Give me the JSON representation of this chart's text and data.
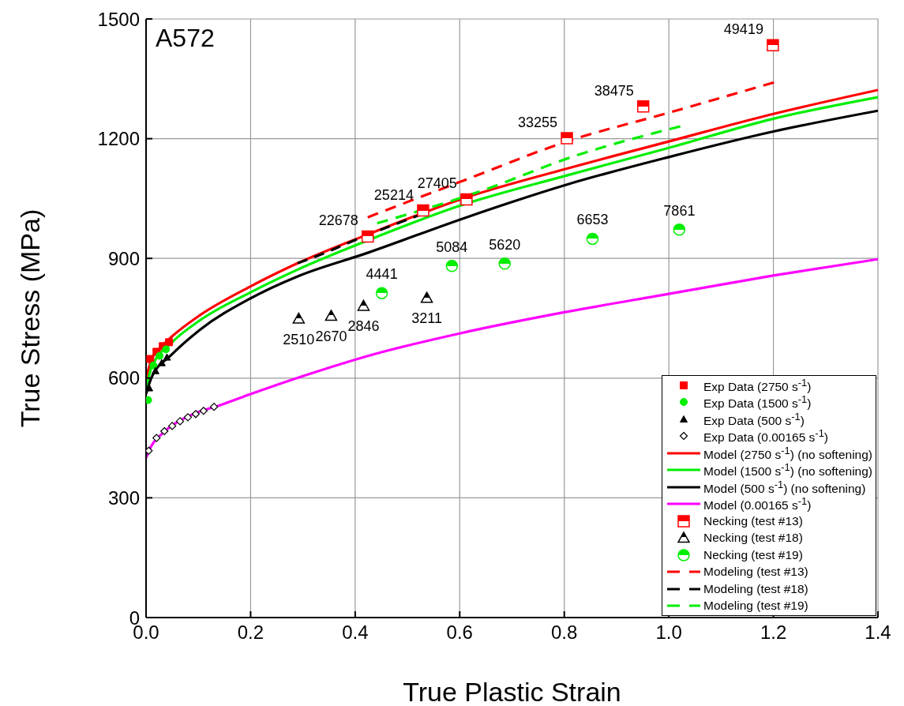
{
  "chart_data": {
    "type": "line",
    "xlabel": "True Plastic Strain",
    "ylabel": "True Stress (MPa)",
    "annotations": [
      "A572",
      {
        "text": "22678",
        "x": 0.424,
        "y": 955
      },
      {
        "text": "25214",
        "x": 0.53,
        "y": 1020
      },
      {
        "text": "27405",
        "x": 0.613,
        "y": 1048
      },
      {
        "text": "33255",
        "x": 0.805,
        "y": 1201
      },
      {
        "text": "38475",
        "x": 0.951,
        "y": 1281
      },
      {
        "text": "49419",
        "x": 1.199,
        "y": 1434
      },
      {
        "text": "2510",
        "x": 0.292,
        "y": 749
      },
      {
        "text": "2670",
        "x": 0.354,
        "y": 756
      },
      {
        "text": "2846",
        "x": 0.416,
        "y": 781
      },
      {
        "text": "3211",
        "x": 0.537,
        "y": 801
      },
      {
        "text": "4441",
        "x": 0.451,
        "y": 813
      },
      {
        "text": "5084",
        "x": 0.585,
        "y": 881
      },
      {
        "text": "5620",
        "x": 0.686,
        "y": 887
      },
      {
        "text": "6653",
        "x": 0.854,
        "y": 949
      },
      {
        "text": "7861",
        "x": 1.02,
        "y": 972
      }
    ],
    "xlim": [
      0,
      1.4
    ],
    "xticks": [
      {
        "value": 0,
        "label": "0.0"
      },
      0.2,
      0.4,
      0.6,
      0.8,
      {
        "value": 1,
        "label": "1.0"
      },
      1.2,
      1.4
    ],
    "ylim": [
      0,
      1500
    ],
    "yticks": [
      0,
      300,
      600,
      900,
      1200,
      1500
    ],
    "grid": true,
    "legend": "bottom right",
    "marker": "none",
    "line_style": "solid",
    "series": [
      {
        "name": "Exp Data (2750 s$^{-1}$)",
        "type": "scatter",
        "marker": "square",
        "color": "#ff0000",
        "x": [
          0.008,
          0.02,
          0.032,
          0.044
        ],
        "values": [
          648,
          666,
          680,
          690
        ]
      },
      {
        "name": "Exp Data (1500 s$^{-1}$)",
        "type": "scatter",
        "marker": "circle",
        "color": "#00ee00",
        "x": [
          0.004,
          0.014,
          0.026,
          0.038
        ],
        "values": [
          545,
          632,
          656,
          672
        ]
      },
      {
        "name": "Exp Data (500 s$^{-1}$)",
        "type": "scatter",
        "marker": "triangle",
        "color": "#000000",
        "x": [
          0.006,
          0.018,
          0.03,
          0.04
        ],
        "values": [
          575,
          618,
          638,
          652
        ]
      },
      {
        "name": "Exp Data (0.00165 s$^{-1}$)",
        "type": "scatter",
        "marker": "diamond",
        "color": "#000000",
        "x": [
          0.005,
          0.02,
          0.035,
          0.05,
          0.065,
          0.08,
          0.095,
          0.11,
          0.13
        ],
        "values": [
          418,
          450,
          467,
          480,
          492,
          502,
          510,
          518,
          528
        ]
      },
      {
        "name": "Model (2750 s$^{-1}$) (no softening)",
        "color": "#ff0000",
        "x": [
          0,
          0.01,
          0.03,
          0.05,
          0.1,
          0.2,
          0.29,
          0.424,
          0.613,
          0.805,
          1.0,
          1.2,
          1.4
        ],
        "values": [
          600,
          645,
          680,
          705,
          755,
          830,
          888,
          960,
          1053,
          1125,
          1193,
          1262,
          1322
        ]
      },
      {
        "name": "Model (1500 s$^{-1}$) (no softening)",
        "color": "#00ee00",
        "x": [
          0,
          0.01,
          0.05,
          0.1,
          0.2,
          0.29,
          0.424,
          0.6,
          0.805,
          1.0,
          1.2,
          1.4
        ],
        "values": [
          570,
          625,
          690,
          742,
          815,
          872,
          945,
          1032,
          1108,
          1177,
          1250,
          1304
        ]
      },
      {
        "name": "Model (500 s$^{-1}$) (no softening)",
        "color": "#000000",
        "x": [
          0,
          0.01,
          0.05,
          0.1,
          0.2,
          0.29,
          0.424,
          0.613,
          0.805,
          1.0,
          1.2,
          1.4
        ],
        "values": [
          560,
          600,
          660,
          718,
          800,
          855,
          914,
          1003,
          1085,
          1154,
          1218,
          1270
        ]
      },
      {
        "name": "Model (0.00165 s$^{-1}$)",
        "color": "#ff00ff",
        "x": [
          0,
          0.01,
          0.03,
          0.06,
          0.1,
          0.141,
          0.2,
          0.3,
          0.439,
          0.6,
          0.8,
          1.0,
          1.2,
          1.4
        ],
        "values": [
          400,
          430,
          460,
          490,
          515,
          532,
          560,
          605,
          661,
          712,
          765,
          811,
          857,
          898
        ]
      },
      {
        "name": "Necking (test #13)",
        "type": "scatter",
        "marker": "square",
        "color": "#ff0000",
        "x": [
          0.424,
          0.53,
          0.613,
          0.805,
          0.951,
          1.199
        ],
        "values": [
          955,
          1020,
          1048,
          1201,
          1281,
          1434
        ]
      },
      {
        "name": "Necking (test #18)",
        "type": "scatter",
        "marker": "triangle",
        "color": "#000000",
        "x": [
          0.292,
          0.354,
          0.416,
          0.537
        ],
        "values": [
          749,
          756,
          781,
          801
        ]
      },
      {
        "name": "Necking (test #19)",
        "type": "scatter",
        "marker": "circle",
        "color": "#00ee00",
        "x": [
          0.451,
          0.585,
          0.686,
          0.854,
          1.02
        ],
        "values": [
          813,
          881,
          887,
          949,
          972
        ]
      },
      {
        "name": "Modeling (test #13)",
        "color": "#ff0000",
        "line_style": "dashed",
        "x": [
          0.424,
          0.613,
          0.805,
          1.0,
          1.201
        ],
        "values": [
          1003,
          1098,
          1193,
          1265,
          1341
        ]
      },
      {
        "name": "Modeling (test #18)",
        "color": "#000000",
        "line_style": "dashed",
        "x": [
          0.29,
          0.35,
          0.38,
          0.53
        ],
        "values": [
          888,
          918,
          935,
          1012
        ]
      },
      {
        "name": "Modeling (test #19)",
        "color": "#00ee00",
        "line_style": "dashed",
        "x": [
          0.442,
          0.65,
          0.805,
          1.022
        ],
        "values": [
          988,
          1073,
          1150,
          1231
        ]
      }
    ]
  }
}
